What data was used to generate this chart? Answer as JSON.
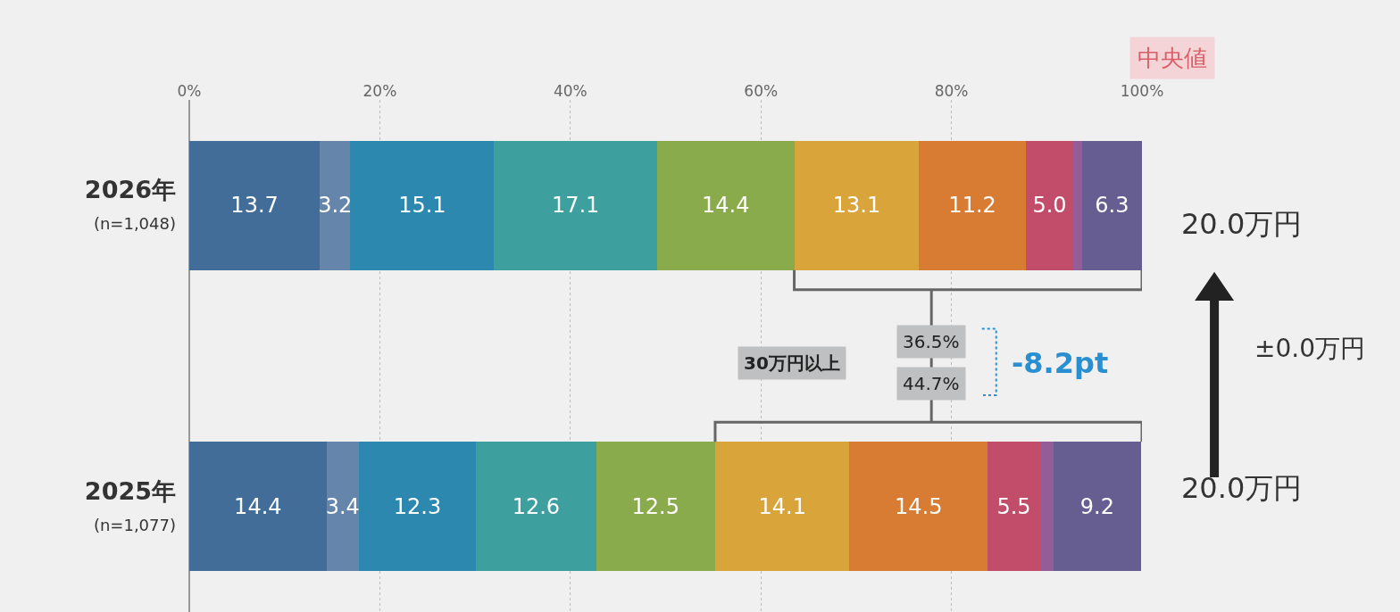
{
  "chart_data": {
    "type": "bar",
    "orientation": "horizontal",
    "stacked": true,
    "grid": "x",
    "categories": [
      "2026年\n(n=1,048)",
      "2025年\n(n=1,077)"
    ],
    "xlim": [
      0,
      100
    ],
    "xticks": [
      {
        "value": 0,
        "label": "0%"
      },
      {
        "value": 20,
        "label": "20%"
      },
      {
        "value": 40,
        "label": "40%"
      },
      {
        "value": 60,
        "label": "60%"
      },
      {
        "value": 80,
        "label": "80%"
      },
      {
        "value": 100,
        "label": "100%"
      }
    ],
    "series": [
      {
        "color": "#426d98",
        "values": [
          13.7,
          14.4
        ],
        "value_labels": [
          "13.7",
          "14.4"
        ]
      },
      {
        "color": "#6585ab",
        "values": [
          3.2,
          3.4
        ],
        "value_labels": [
          "3.2",
          "3.4"
        ]
      },
      {
        "color": "#2d88b0",
        "values": [
          15.1,
          12.3
        ],
        "value_labels": [
          "15.1",
          "12.3"
        ]
      },
      {
        "color": "#3ea09e",
        "values": [
          17.1,
          12.6
        ],
        "value_labels": [
          "17.1",
          "12.6"
        ]
      },
      {
        "color": "#8aab4c",
        "values": [
          14.4,
          12.5
        ],
        "value_labels": [
          "14.4",
          "12.5"
        ]
      },
      {
        "color": "#d9a43a",
        "values": [
          13.1,
          14.1
        ],
        "value_labels": [
          "13.1",
          "14.1"
        ]
      },
      {
        "color": "#d87b33",
        "values": [
          11.2,
          14.5
        ],
        "value_labels": [
          "11.2",
          "14.5"
        ]
      },
      {
        "color": "#c24d6a",
        "values": [
          5.0,
          5.5
        ],
        "value_labels": [
          "5.0",
          "5.5"
        ]
      },
      {
        "color": "#945d97",
        "values": [
          0.9,
          1.4
        ],
        "value_labels": [
          null,
          null
        ]
      },
      {
        "color": "#665d90",
        "values": [
          6.3,
          9.2
        ],
        "value_labels": [
          "6.3",
          "9.2"
        ]
      }
    ],
    "annotations": [
      "中央値",
      "20.0万円",
      "20.0万円",
      "±0.0万円",
      "30万円以上",
      "36.5%",
      "44.7%",
      "-8.2pt"
    ]
  }
}
